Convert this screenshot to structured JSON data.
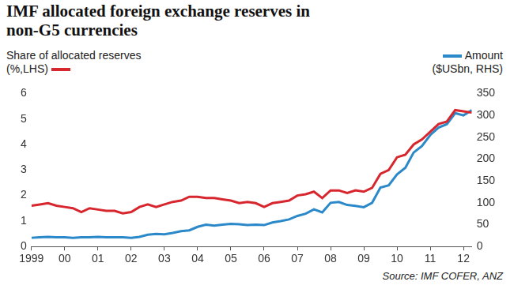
{
  "chart_data": {
    "type": "line",
    "title": "IMF allocated foreign exchange reserves in non-G5 currencies",
    "source": "Source: IMF COFER, ANZ",
    "categories": [
      "1999",
      null,
      null,
      null,
      "00",
      null,
      null,
      null,
      "01",
      null,
      null,
      null,
      "02",
      null,
      null,
      null,
      "03",
      null,
      null,
      null,
      "04",
      null,
      null,
      null,
      "05",
      null,
      null,
      null,
      "06",
      null,
      null,
      null,
      "07",
      null,
      null,
      null,
      "08",
      null,
      null,
      null,
      "09",
      null,
      null,
      null,
      "10",
      null,
      null,
      null,
      "11",
      null,
      null,
      null,
      "12",
      null
    ],
    "series": [
      {
        "name": "Share of allocated reserves (%,LHS)",
        "color": "#d7262e",
        "values": [
          1.6,
          1.65,
          1.7,
          1.6,
          1.55,
          1.5,
          1.35,
          1.5,
          1.45,
          1.4,
          1.4,
          1.3,
          1.35,
          1.55,
          1.65,
          1.55,
          1.65,
          1.75,
          1.8,
          1.95,
          1.95,
          1.9,
          1.9,
          1.85,
          1.8,
          1.7,
          1.75,
          1.7,
          1.55,
          1.7,
          1.75,
          1.8,
          2.0,
          2.05,
          2.15,
          1.9,
          2.2,
          2.2,
          2.1,
          2.2,
          2.15,
          2.3,
          2.85,
          3.0,
          3.5,
          3.6,
          4.0,
          4.2,
          4.5,
          4.8,
          4.9,
          5.35,
          5.3,
          5.25
        ]
      },
      {
        "name": "Amount ($USbn, RHS)",
        "color": "#2c89c9",
        "axis": "y2",
        "values": [
          20,
          21,
          22,
          21,
          21,
          20,
          21,
          21,
          22,
          21,
          21,
          21,
          20,
          22,
          27,
          29,
          28,
          31,
          35,
          37,
          45,
          50,
          48,
          50,
          52,
          51,
          49,
          50,
          49,
          55,
          58,
          62,
          70,
          75,
          85,
          78,
          100,
          102,
          95,
          93,
          90,
          100,
          135,
          140,
          165,
          180,
          215,
          230,
          255,
          272,
          280,
          305,
          300,
          312
        ]
      }
    ],
    "ylim": [
      0,
      6
    ],
    "yticks": [
      0,
      1,
      2,
      3,
      4,
      5,
      6
    ],
    "y2lim": [
      0,
      350
    ],
    "y2ticks": [
      0,
      50,
      100,
      150,
      200,
      250,
      300,
      350
    ],
    "grid": false
  }
}
